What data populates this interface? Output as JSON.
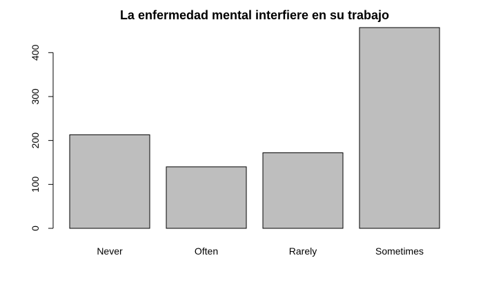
{
  "chart_data": {
    "type": "bar",
    "title": "La enfermedad mental interfiere en su trabajo",
    "xlabel": "",
    "ylabel": "",
    "categories": [
      "Never",
      "Often",
      "Rarely",
      "Sometimes"
    ],
    "values": [
      213,
      140,
      172,
      457
    ],
    "ylim": [
      0,
      457
    ],
    "yticks": [
      0,
      100,
      200,
      300,
      400
    ],
    "grid": false,
    "legend": "none",
    "colors": {
      "bar_fill": "#bebebe",
      "bar_stroke": "#000000",
      "axis": "#000000",
      "background": "#ffffff"
    }
  }
}
